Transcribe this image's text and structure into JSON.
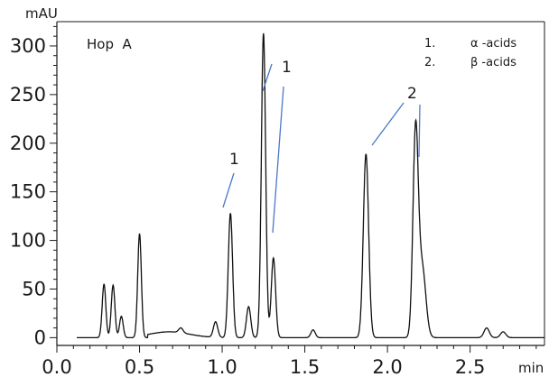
{
  "chart_data": {
    "type": "line",
    "sample_label": "Hop  A",
    "xlabel": "min",
    "ylabel": "mAU",
    "xlim": [
      0,
      2.95
    ],
    "ylim": [
      -8,
      325
    ],
    "x_ticks": [
      "0.0",
      "0.5",
      "1.0",
      "1.5",
      "2.0",
      "2.5"
    ],
    "y_ticks": [
      "0",
      "50",
      "100",
      "150",
      "200",
      "250",
      "300"
    ],
    "legend": [
      {
        "num": "1.",
        "label": "α -acids"
      },
      {
        "num": "2.",
        "label": "β -acids"
      }
    ],
    "peak_labels": [
      {
        "text": "1",
        "x": 1.08,
        "y": 180
      },
      {
        "text": "1",
        "x": 1.39,
        "y": 280
      },
      {
        "text": "2",
        "x": 2.17,
        "y": 250
      }
    ],
    "baseline": 0,
    "series": [
      {
        "peaks": [
          {
            "rt": 0.285,
            "height": 55
          },
          {
            "rt": 0.34,
            "height": 54
          },
          {
            "rt": 0.39,
            "height": 22
          },
          {
            "rt": 0.5,
            "height": 107
          },
          {
            "rt": 0.75,
            "height": 5
          },
          {
            "rt": 0.96,
            "height": 16
          },
          {
            "rt": 1.05,
            "height": 128
          },
          {
            "rt": 1.16,
            "height": 32
          },
          {
            "rt": 1.25,
            "height": 313
          },
          {
            "rt": 1.31,
            "height": 82
          },
          {
            "rt": 1.55,
            "height": 8
          },
          {
            "rt": 1.87,
            "height": 189
          },
          {
            "rt": 2.17,
            "height": 209
          },
          {
            "rt": 2.21,
            "height": 72
          },
          {
            "rt": 2.6,
            "height": 10
          },
          {
            "rt": 2.7,
            "height": 6
          }
        ]
      }
    ],
    "colors": {
      "trace": "#111111",
      "annotation_line": "#4a78c9",
      "axis": "#1a1a1a"
    }
  }
}
